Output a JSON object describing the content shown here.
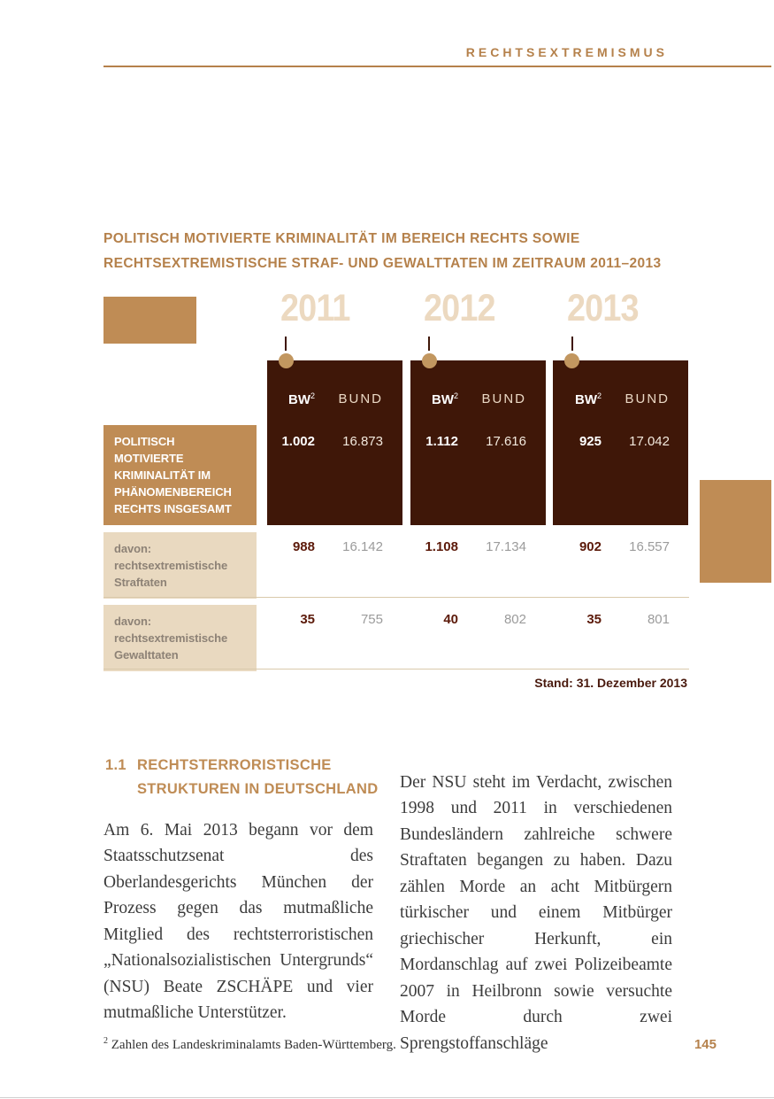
{
  "colors": {
    "accent": "#bf8c55",
    "accent_text": "#b5814b",
    "dot": "#c29760",
    "panel": "#3f1708",
    "year": "#ecd9c0",
    "cell_beige": "#e9d9c0",
    "label_gray": "#8d8276",
    "value_dark": "#5c1a0a",
    "value_gray": "#9b9b9b",
    "stand": "#4a1a0e",
    "body": "#3c3c3c",
    "separator": "#d9c9ab"
  },
  "header": {
    "kicker": "RECHTSEXTREMISMUS"
  },
  "table": {
    "title_line1": "POLITISCH MOTIVIERTE KRIMINALITÄT IM BEREICH RECHTS SOWIE",
    "title_line2": "RECHTSEXTREMISTISCHE STRAF- UND GEWALTTATEN IM ZEITRAUM 2011–2013",
    "years": [
      "2011",
      "2012",
      "2013"
    ],
    "col_bw": "BW",
    "col_bw_sup": "2",
    "col_bund": "BUND",
    "row1": {
      "label_lines": [
        "POLITISCH MOTIVIERTE",
        "KRIMINALITÄT IM",
        "PHÄNOMENBEREICH",
        "RECHTS INSGESAMT"
      ],
      "values": [
        [
          "1.002",
          "16.873"
        ],
        [
          "1.112",
          "17.616"
        ],
        [
          "925",
          "17.042"
        ]
      ]
    },
    "row2": {
      "label_lines": [
        "davon:",
        "rechtsextremistische",
        "Straftaten"
      ],
      "values": [
        [
          "988",
          "16.142"
        ],
        [
          "1.108",
          "17.134"
        ],
        [
          "902",
          "16.557"
        ]
      ]
    },
    "row3": {
      "label_lines": [
        "davon:",
        "rechtsextremistische",
        "Gewalttaten"
      ],
      "values": [
        [
          "35",
          "755"
        ],
        [
          "40",
          "802"
        ],
        [
          "35",
          "801"
        ]
      ]
    },
    "stand": "Stand: 31. Dezember 2013"
  },
  "section": {
    "number": "1.1",
    "heading_line1": "RECHTSTERRORISTISCHE",
    "heading_line2": "STRUKTUREN IN DEUTSCHLAND",
    "paragraph_left": "Am 6. Mai 2013 begann vor dem Staatsschutzsenat des Oberlandesgerichts München der Prozess gegen das mutmaßliche Mitglied des rechtsterroristischen „Nationalsozialistischen Untergrunds“ (NSU) Beate ZSCHÄPE und vier mutmaßliche Unterstützer.",
    "paragraph_right": "Der NSU steht im Verdacht, zwischen 1998 und 2011 in verschiedenen Bundesländern zahlreiche schwere Straftaten begangen zu haben. Dazu zählen Morde an acht Mitbürgern türkischer und einem Mitbürger griechischer Herkunft, ein Mordanschlag auf zwei Polizeibeamte 2007 in Heilbronn sowie versuchte Morde durch zwei Sprengstoffanschläge"
  },
  "footer": {
    "footnote_marker": "2",
    "footnote_text": " Zahlen des Landeskriminalamts Baden-Württemberg.",
    "page_number": "145"
  }
}
